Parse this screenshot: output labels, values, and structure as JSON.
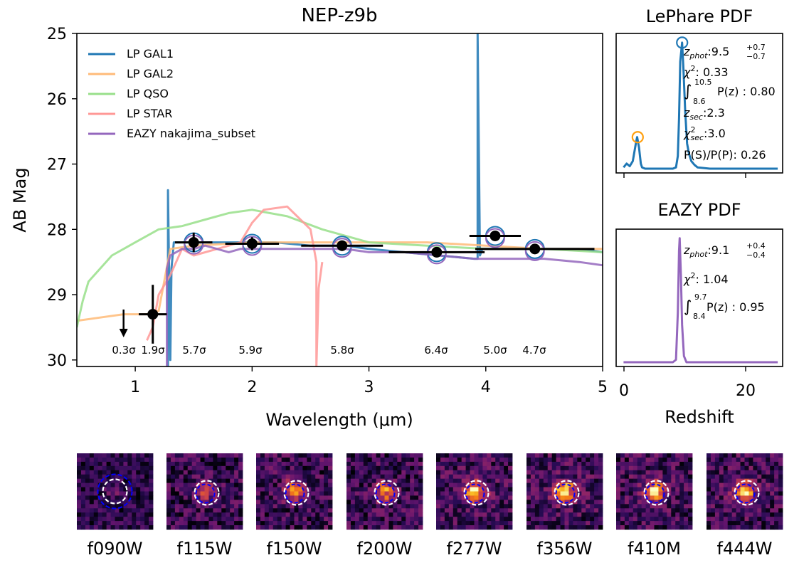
{
  "chart_data": [
    {
      "type": "line",
      "title": "NEP-z9b",
      "xlabel": "Wavelength (μm)",
      "ylabel": "AB Mag",
      "xlim": [
        0.5,
        5
      ],
      "ylim": [
        30.1,
        25
      ],
      "xticks": [
        "1",
        "2",
        "3",
        "4",
        "5"
      ],
      "xtick_values": [
        1,
        2,
        3,
        4,
        5
      ],
      "yticks": [
        "25",
        "26",
        "27",
        "28",
        "29",
        "30"
      ],
      "ytick_values": [
        25,
        26,
        27,
        28,
        29,
        30
      ],
      "legend": [
        {
          "label": "LP GAL1",
          "color": "#1f77b4"
        },
        {
          "label": "LP GAL2",
          "color": "#ffbb78"
        },
        {
          "label": "LP QSO",
          "color": "#98df8a"
        },
        {
          "label": "LP STAR",
          "color": "#ff9896"
        },
        {
          "label": "EAZY nakajima_subset",
          "color": "#9467bd"
        }
      ],
      "series": [
        {
          "name": "LP GAL1",
          "color": "#1f77b4",
          "x": [
            1.28,
            1.28,
            1.3,
            1.31,
            1.33,
            1.5,
            1.8,
            2.0,
            2.2,
            2.5,
            2.8,
            3.0,
            3.3,
            3.6,
            3.9,
            3.93,
            3.93,
            3.95,
            3.97,
            4.2,
            4.5,
            4.8,
            5.0
          ],
          "y": [
            30.1,
            27.4,
            30.0,
            28.6,
            28.2,
            28.2,
            28.2,
            28.2,
            28.2,
            28.25,
            28.25,
            28.3,
            28.35,
            28.4,
            28.45,
            28.45,
            25.0,
            28.4,
            28.3,
            28.3,
            28.3,
            28.3,
            28.35
          ]
        },
        {
          "name": "LP GAL2",
          "color": "#ffbb78",
          "x": [
            0.5,
            0.7,
            0.9,
            1.0,
            1.1,
            1.2,
            1.3,
            1.5,
            2.0,
            2.5,
            3.0,
            3.5,
            4.0,
            4.5,
            5.0
          ],
          "y": [
            29.4,
            29.35,
            29.3,
            29.3,
            29.3,
            29.25,
            28.3,
            28.25,
            28.2,
            28.2,
            28.2,
            28.2,
            28.25,
            28.3,
            28.3
          ]
        },
        {
          "name": "LP QSO",
          "color": "#98df8a",
          "x": [
            0.5,
            0.55,
            0.6,
            0.7,
            0.8,
            0.9,
            1.0,
            1.2,
            1.4,
            1.6,
            1.8,
            2.0,
            2.3,
            2.6,
            3.0,
            3.5,
            4.0,
            4.5,
            5.0
          ],
          "y": [
            29.5,
            29.1,
            28.8,
            28.6,
            28.4,
            28.3,
            28.2,
            28.0,
            27.95,
            27.85,
            27.75,
            27.7,
            27.8,
            28.0,
            28.2,
            28.25,
            28.3,
            28.3,
            28.35
          ]
        },
        {
          "name": "LP STAR",
          "color": "#ff9896",
          "x": [
            1.1,
            1.15,
            1.2,
            1.3,
            1.4,
            1.5,
            1.7,
            1.9,
            2.0,
            2.1,
            2.3,
            2.5,
            2.55,
            2.55,
            2.57,
            2.6
          ],
          "y": [
            29.7,
            29.5,
            29.0,
            28.7,
            28.3,
            28.4,
            28.3,
            28.2,
            27.9,
            27.7,
            27.65,
            28.0,
            28.5,
            30.1,
            28.9,
            28.5
          ]
        },
        {
          "name": "EAZY nakajima_subset",
          "color": "#9467bd",
          "x": [
            1.27,
            1.27,
            1.3,
            1.4,
            1.5,
            1.6,
            1.7,
            1.8,
            1.9,
            2.0,
            2.2,
            2.5,
            2.8,
            3.0,
            3.3,
            3.6,
            3.9,
            4.0,
            4.2,
            4.5,
            4.8,
            5.0
          ],
          "y": [
            30.1,
            28.6,
            28.4,
            28.3,
            28.3,
            28.25,
            28.3,
            28.35,
            28.3,
            28.3,
            28.3,
            28.3,
            28.3,
            28.35,
            28.35,
            28.4,
            28.45,
            28.45,
            28.45,
            28.45,
            28.5,
            28.55
          ]
        }
      ],
      "photometry": [
        {
          "band": "f090W",
          "x": 0.9,
          "y": 29.5,
          "xerr": 0.0,
          "yerr": 0.0,
          "upper_limit": true,
          "snr": "0.3σ"
        },
        {
          "band": "f115W",
          "x": 1.15,
          "y": 29.3,
          "xerr": 0.12,
          "yerr": 0.45,
          "upper_limit": false,
          "snr": "1.9σ"
        },
        {
          "band": "f150W",
          "x": 1.5,
          "y": 28.2,
          "xerr": 0.16,
          "yerr": 0.15,
          "upper_limit": false,
          "snr": "5.7σ"
        },
        {
          "band": "f200W",
          "x": 2.0,
          "y": 28.22,
          "xerr": 0.23,
          "yerr": 0.1,
          "upper_limit": false,
          "snr": "5.9σ"
        },
        {
          "band": "f277W",
          "x": 2.77,
          "y": 28.25,
          "xerr": 0.35,
          "yerr": 0.08,
          "upper_limit": false,
          "snr": "5.8σ"
        },
        {
          "band": "f356W",
          "x": 3.58,
          "y": 28.35,
          "xerr": 0.41,
          "yerr": 0.08,
          "upper_limit": false,
          "snr": "6.4σ"
        },
        {
          "band": "f410M",
          "x": 4.08,
          "y": 28.1,
          "xerr": 0.22,
          "yerr": 0.06,
          "upper_limit": false,
          "snr": "5.0σ"
        },
        {
          "band": "f444W",
          "x": 4.42,
          "y": 28.3,
          "xerr": 0.51,
          "yerr": 0.06,
          "upper_limit": false,
          "snr": "4.7σ"
        }
      ]
    },
    {
      "type": "line",
      "title": "LePhare PDF",
      "xlim": [
        -1.2,
        25.8
      ],
      "ylim": [
        0,
        1.05
      ],
      "color": "#1f77b4",
      "x": [
        0,
        0.5,
        1.0,
        1.5,
        2.0,
        2.2,
        2.5,
        2.8,
        3.0,
        3.5,
        4.0,
        5.0,
        6.0,
        7.0,
        8.0,
        8.5,
        8.8,
        9.0,
        9.2,
        9.5,
        9.7,
        10.0,
        10.3,
        10.6,
        11.0,
        11.5,
        12.0,
        14.0,
        18.0,
        22.0,
        25.0
      ],
      "y": [
        0.01,
        0.04,
        0.02,
        0.06,
        0.2,
        0.25,
        0.17,
        0.04,
        0.01,
        0.0,
        0.0,
        0.0,
        0.0,
        0.0,
        0.0,
        0.01,
        0.1,
        0.4,
        0.85,
        1.0,
        0.8,
        0.45,
        0.2,
        0.12,
        0.06,
        0.03,
        0.01,
        0.0,
        0.0,
        0.0,
        0.0
      ],
      "peaks": [
        {
          "x": 9.5,
          "y": 1.0,
          "color": "#1f77b4"
        },
        {
          "x": 2.3,
          "y": 0.25,
          "color": "#ff9f0e"
        }
      ],
      "annotations": {
        "zphot_label": "z",
        "zphot_sub": "phot",
        "zphot_value": ":9.5",
        "zphot_up": "+0.7",
        "zphot_down": "−0.7",
        "chi2_label": "χ",
        "chi2_value": ": 0.33",
        "integral_upper": "10.5",
        "integral_lower": "8.6",
        "integral_value": "P(z) : 0.80",
        "zsec_label": "z",
        "zsec_sub": "sec",
        "zsec_value": ":2.3",
        "chi2sec_label": "χ",
        "chi2sec_sub": "sec",
        "chi2sec_value": ":3.0",
        "ratio": "P(S)/P(P): 0.26"
      }
    },
    {
      "type": "line",
      "title": "EAZY PDF",
      "xlabel": "Redshift",
      "xlim": [
        -1.2,
        25.8
      ],
      "ylim": [
        0,
        1.05
      ],
      "xticks": [
        "0",
        "20"
      ],
      "xtick_values": [
        0,
        20
      ],
      "color": "#9467bd",
      "x": [
        0,
        4,
        8.0,
        8.5,
        8.8,
        9.0,
        9.1,
        9.3,
        9.5,
        9.8,
        10.2,
        12,
        16,
        22,
        25
      ],
      "y": [
        0.0,
        0.0,
        0.0,
        0.02,
        0.4,
        0.9,
        1.0,
        0.7,
        0.3,
        0.05,
        0.0,
        0.0,
        0.0,
        0.0,
        0.0
      ],
      "annotations": {
        "zphot_label": "z",
        "zphot_sub": "phot",
        "zphot_value": ":9.1",
        "zphot_up": "+0.4",
        "zphot_down": "−0.4",
        "chi2_label": "χ",
        "chi2_value": ": 1.04",
        "integral_upper": "9.7",
        "integral_lower": "8.4",
        "integral_value": "P(z) : 0.95"
      }
    }
  ],
  "cutouts": {
    "labels": [
      "f090W",
      "f115W",
      "f150W",
      "f200W",
      "f277W",
      "f356W",
      "f410M",
      "f444W"
    ],
    "source_strength": [
      0.15,
      0.45,
      0.75,
      0.7,
      0.85,
      0.9,
      0.8,
      0.75
    ]
  },
  "colors": {
    "points": "#000000",
    "aperture_sed_blue": "#1f77b4",
    "aperture_sed_purple": "#9467bd",
    "cutout_inner": "#ffffff",
    "cutout_outer": "#0000ff"
  }
}
